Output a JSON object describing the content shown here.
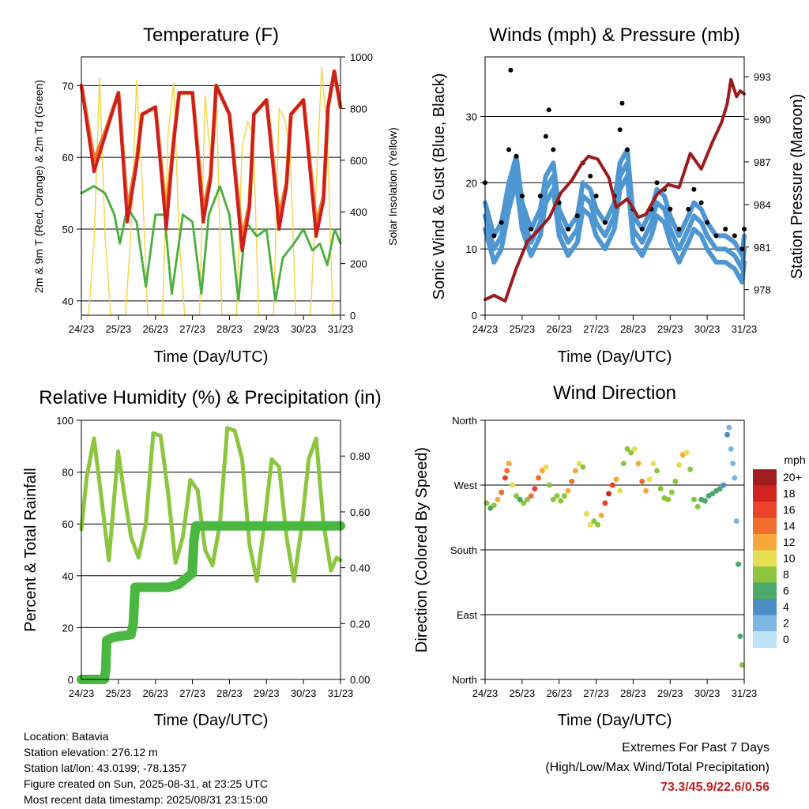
{
  "x_tick_labels": [
    "24/23",
    "25/23",
    "26/23",
    "27/23",
    "28/23",
    "29/23",
    "30/23",
    "31/23"
  ],
  "panels": {
    "temperature": {
      "title": "Temperature (F)",
      "xlabel": "Time (Day/UTC)",
      "ylabel_left": "2m & 9m T (Red, Orange) & 2m Td (Green)",
      "ylabel_right": "Solar Insolation (Yellow)"
    },
    "winds": {
      "title": "Winds (mph) & Pressure (mb)",
      "xlabel": "Time (Day/UTC)",
      "ylabel_left": "Sonic Wind & Gust (Blue, Black)",
      "ylabel_right": "Station Pressure (Maroon)"
    },
    "humidity": {
      "title": "Relative Humidity (%) & Precipitation (in)",
      "xlabel": "Time (Day/UTC)",
      "ylabel_left": "Percent & Total Rainfall"
    },
    "direction": {
      "title": "Wind Direction",
      "xlabel": "Time (Day/UTC)",
      "ylabel_left": "Direction (Colored By Speed)",
      "colorbar_title": "mph",
      "colorbar_labels": [
        "20+",
        "18",
        "16",
        "14",
        "12",
        "10",
        "8",
        "6",
        "4",
        "2",
        "0"
      ],
      "colorbar_colors": [
        "#a31c20",
        "#d2241f",
        "#e9432a",
        "#f26e2e",
        "#f9a73c",
        "#e6df52",
        "#8cc63f",
        "#4aa868",
        "#4a8ec5",
        "#7cb6e3",
        "#bfe3f7"
      ]
    }
  },
  "info": {
    "location": "Location: Batavia",
    "elevation": "Station elevation: 276.12 m",
    "latlon": "Station lat/lon: 43.0199; -78.1357",
    "created": "Figure created on Sun, 2025-08-31, at 23:25 UTC",
    "timestamp": "Most recent data timestamp: 2025/08/31 23:15:00"
  },
  "extremes": {
    "title": "Extremes For Past 7 Days",
    "subtitle": "(High/Low/Max Wind/Total Precipitation)",
    "values": "73.3/45.9/22.6/0.56"
  },
  "colors": {
    "temp_2m": "#cc1f1f",
    "temp_9m": "#f07a22",
    "dewpoint": "#4caf3f",
    "insolation": "#f5d442",
    "wind": "#4f97d3",
    "gust": "#000000",
    "pressure": "#9b1c1c",
    "rh": "#8cc63f",
    "precip": "#4ab840"
  },
  "chart_data": [
    {
      "type": "line",
      "name_key": "temperature",
      "x_range_days": [
        24.958,
        31.958
      ],
      "ylim_left": [
        38,
        74
      ],
      "yticks_left": [
        40,
        50,
        60,
        70
      ],
      "ylim_right": [
        0,
        1000
      ],
      "yticks_right": [
        0,
        200,
        400,
        600,
        800,
        1000
      ],
      "grid": true,
      "series": [
        {
          "key": "temp_2m",
          "x": [
            24.958,
            25.3,
            25.6,
            25.958,
            26.2,
            26.45,
            26.6,
            26.958,
            27.25,
            27.45,
            27.6,
            27.958,
            28.25,
            28.45,
            28.6,
            28.958,
            29.3,
            29.5,
            29.62,
            29.958,
            30.3,
            30.5,
            30.62,
            30.958,
            31.3,
            31.5,
            31.62,
            31.79,
            31.958
          ],
          "y": [
            70,
            58,
            63,
            69,
            51,
            59,
            66,
            67,
            50,
            62,
            69,
            69,
            51,
            57,
            70,
            66,
            47,
            53,
            66,
            68,
            50,
            56,
            66,
            68,
            49,
            54,
            67,
            72,
            67
          ]
        },
        {
          "key": "temp_9m",
          "x": [
            24.958,
            25.3,
            25.6,
            25.958,
            26.2,
            26.45,
            26.6,
            26.958,
            27.25,
            27.45,
            27.6,
            27.958,
            28.25,
            28.45,
            28.6,
            28.958,
            29.3,
            29.5,
            29.62,
            29.958,
            30.3,
            30.5,
            30.62,
            30.958,
            31.3,
            31.5,
            31.62,
            31.79,
            31.958
          ],
          "y": [
            70,
            59.5,
            63.5,
            69,
            52.5,
            59.5,
            66,
            67,
            51.5,
            62.5,
            69,
            69,
            52.5,
            57.5,
            70,
            66,
            48.5,
            53.5,
            66,
            68,
            51.5,
            56.5,
            66,
            68,
            50.5,
            54.5,
            67,
            72,
            67
          ]
        },
        {
          "key": "dewpoint",
          "x": [
            24.958,
            25.3,
            25.6,
            25.85,
            26.0,
            26.2,
            26.45,
            26.7,
            26.958,
            27.2,
            27.4,
            27.7,
            27.958,
            28.2,
            28.4,
            28.7,
            28.958,
            29.2,
            29.4,
            29.7,
            29.958,
            30.2,
            30.4,
            30.7,
            30.958,
            31.2,
            31.4,
            31.6,
            31.8,
            31.958
          ],
          "y": [
            55,
            56,
            55,
            52,
            48,
            53,
            51,
            42,
            52,
            52,
            41,
            52,
            51,
            41,
            52,
            56,
            52,
            40,
            51,
            49,
            50,
            40,
            46,
            48,
            50,
            47,
            48,
            45,
            50,
            48
          ]
        },
        {
          "key": "insolation",
          "axis": "right",
          "x": [
            24.958,
            25.15,
            25.3,
            25.45,
            25.6,
            25.75,
            25.958,
            26.15,
            26.3,
            26.45,
            26.6,
            26.75,
            26.958,
            27.15,
            27.3,
            27.45,
            27.6,
            27.75,
            27.958,
            28.15,
            28.3,
            28.45,
            28.6,
            28.75,
            28.958,
            29.15,
            29.3,
            29.45,
            29.6,
            29.75,
            29.958,
            30.15,
            30.3,
            30.45,
            30.6,
            30.75,
            30.958,
            31.15,
            31.3,
            31.45,
            31.6,
            31.75,
            31.958
          ],
          "y": [
            0,
            0,
            280,
            920,
            300,
            0,
            0,
            0,
            330,
            910,
            520,
            0,
            0,
            0,
            700,
            900,
            300,
            0,
            0,
            0,
            850,
            600,
            880,
            0,
            0,
            0,
            650,
            750,
            700,
            0,
            0,
            0,
            800,
            760,
            630,
            0,
            0,
            0,
            500,
            960,
            700,
            0,
            0
          ]
        }
      ]
    },
    {
      "type": "line",
      "name_key": "winds",
      "x_range_days": [
        24.958,
        31.958
      ],
      "ylim_left": [
        0,
        39
      ],
      "yticks_left": [
        0,
        10,
        20,
        30
      ],
      "ylim_right": [
        976.2,
        994.4
      ],
      "yticks_right": [
        978,
        981,
        984,
        987,
        990,
        993
      ],
      "grid": true,
      "series": [
        {
          "key": "wind",
          "style": "dense-band",
          "x": [
            24.958,
            25.2,
            25.4,
            25.6,
            25.8,
            25.958,
            26.2,
            26.45,
            26.6,
            26.8,
            26.958,
            27.2,
            27.45,
            27.6,
            27.8,
            27.958,
            28.2,
            28.45,
            28.6,
            28.8,
            28.958,
            29.2,
            29.45,
            29.6,
            29.8,
            29.958,
            30.2,
            30.45,
            30.6,
            30.8,
            30.958,
            31.2,
            31.45,
            31.7,
            31.9,
            31.958
          ],
          "y": [
            15,
            10,
            12,
            18,
            22,
            15,
            11,
            14,
            19,
            21,
            14,
            11,
            13,
            18,
            17,
            14,
            12,
            15,
            21,
            23,
            13,
            11,
            14,
            17,
            16,
            13,
            10,
            13,
            15,
            14,
            12,
            10,
            10,
            9,
            7,
            10
          ]
        },
        {
          "key": "gust",
          "style": "points",
          "x": [
            24.958,
            25.2,
            25.4,
            25.6,
            25.65,
            25.8,
            25.958,
            26.2,
            26.45,
            26.6,
            26.68,
            26.8,
            26.958,
            27.2,
            27.45,
            27.6,
            27.8,
            27.958,
            28.2,
            28.45,
            28.6,
            28.66,
            28.8,
            28.958,
            29.2,
            29.45,
            29.6,
            29.8,
            29.958,
            30.2,
            30.45,
            30.6,
            30.8,
            30.958,
            31.2,
            31.45,
            31.7,
            31.9,
            31.958
          ],
          "y": [
            20,
            12,
            14,
            25,
            37,
            24,
            18,
            13,
            18,
            27,
            31,
            25,
            17,
            13,
            15,
            23,
            21,
            18,
            14,
            18,
            28,
            32,
            25,
            16,
            13,
            16,
            20,
            19,
            16,
            13,
            16,
            19,
            17,
            14,
            12,
            13,
            12,
            10,
            13
          ]
        },
        {
          "key": "pressure",
          "axis": "right",
          "x": [
            24.958,
            25.2,
            25.5,
            25.8,
            26.1,
            26.4,
            26.7,
            27.0,
            27.3,
            27.55,
            27.75,
            28.0,
            28.3,
            28.5,
            28.8,
            29.1,
            29.3,
            29.6,
            29.9,
            30.2,
            30.5,
            30.8,
            31.1,
            31.35,
            31.5,
            31.6,
            31.75,
            31.85,
            31.958
          ],
          "y": [
            977.3,
            977.6,
            977.2,
            979.5,
            981.4,
            982.2,
            983.1,
            984.8,
            985.7,
            986.8,
            987.4,
            987.2,
            985.9,
            983.8,
            984.4,
            983.1,
            983.3,
            984.7,
            985.4,
            985.2,
            987.6,
            986.5,
            988.4,
            989.8,
            991.1,
            992.8,
            991.6,
            992.0,
            991.8
          ]
        }
      ]
    },
    {
      "type": "line",
      "name_key": "humidity",
      "x_range_days": [
        24.958,
        31.958
      ],
      "ylim_left": [
        0,
        100
      ],
      "yticks_left": [
        0,
        20,
        40,
        60,
        80,
        100
      ],
      "ylim_right": [
        0,
        0.928
      ],
      "yticks_right": [
        0.0,
        0.2,
        0.4,
        0.6,
        0.8
      ],
      "grid": true,
      "series": [
        {
          "key": "rh",
          "x": [
            24.958,
            25.1,
            25.3,
            25.5,
            25.7,
            25.95,
            26.1,
            26.3,
            26.5,
            26.7,
            26.9,
            27.1,
            27.3,
            27.5,
            27.7,
            27.9,
            28.1,
            28.3,
            28.5,
            28.7,
            28.9,
            29.1,
            29.3,
            29.5,
            29.7,
            29.9,
            30.1,
            30.3,
            30.5,
            30.7,
            30.9,
            31.1,
            31.3,
            31.5,
            31.7,
            31.85,
            31.958
          ],
          "y": [
            58,
            78,
            93,
            70,
            46,
            88,
            73,
            55,
            47,
            60,
            95,
            94,
            72,
            45,
            55,
            77,
            73,
            50,
            44,
            60,
            97,
            96,
            85,
            52,
            38,
            60,
            85,
            82,
            55,
            38,
            58,
            85,
            93,
            60,
            42,
            47,
            46
          ]
        },
        {
          "key": "precip",
          "axis": "right",
          "x": [
            24.958,
            25.58,
            25.62,
            25.64,
            25.8,
            26.0,
            26.3,
            26.36,
            26.41,
            26.9,
            27.3,
            27.58,
            27.95,
            28.0,
            28.05,
            28.2,
            28.6,
            31.958
          ],
          "y": [
            0.0,
            0.0,
            0.04,
            0.14,
            0.15,
            0.155,
            0.16,
            0.2,
            0.33,
            0.33,
            0.33,
            0.34,
            0.38,
            0.5,
            0.55,
            0.55,
            0.55,
            0.55
          ]
        }
      ]
    },
    {
      "type": "scatter",
      "name_key": "direction",
      "x_range_days": [
        24.958,
        31.958
      ],
      "ylim_left": [
        0,
        360
      ],
      "yticks_left_labels": [
        "North",
        "East",
        "South",
        "West",
        "North"
      ],
      "yticks_left_values": [
        0,
        90,
        180,
        270,
        360
      ],
      "grid": true,
      "points_x": [
        25.0,
        25.1,
        25.2,
        25.3,
        25.4,
        25.5,
        25.55,
        25.6,
        25.7,
        25.8,
        25.9,
        26.0,
        26.1,
        26.2,
        26.3,
        26.4,
        26.5,
        26.6,
        26.7,
        26.8,
        26.9,
        27.0,
        27.1,
        27.2,
        27.3,
        27.4,
        27.5,
        27.6,
        27.7,
        27.8,
        27.9,
        28.0,
        28.1,
        28.2,
        28.3,
        28.4,
        28.5,
        28.6,
        28.7,
        28.8,
        28.9,
        29.0,
        29.1,
        29.2,
        29.3,
        29.4,
        29.5,
        29.6,
        29.7,
        29.8,
        29.9,
        30.0,
        30.1,
        30.2,
        30.3,
        30.4,
        30.5,
        30.6,
        30.7,
        30.8,
        30.9,
        31.0,
        31.1,
        31.2,
        31.3,
        31.4,
        31.5,
        31.55,
        31.6,
        31.65,
        31.7,
        31.75,
        31.8,
        31.85,
        31.9
      ],
      "points_y": [
        245,
        238,
        242,
        250,
        260,
        280,
        290,
        300,
        270,
        255,
        250,
        245,
        250,
        255,
        265,
        280,
        290,
        295,
        270,
        250,
        255,
        248,
        255,
        262,
        275,
        290,
        300,
        295,
        230,
        215,
        220,
        215,
        228,
        245,
        258,
        270,
        278,
        262,
        300,
        320,
        315,
        320,
        300,
        275,
        262,
        278,
        300,
        290,
        265,
        252,
        250,
        260,
        275,
        298,
        312,
        315,
        292,
        250,
        240,
        250,
        248,
        255,
        258,
        262,
        265,
        270,
        340,
        350,
        320,
        300,
        280,
        220,
        160,
        60,
        20
      ],
      "points_speed": [
        8,
        7,
        9,
        12,
        15,
        16,
        14,
        12,
        10,
        8,
        7,
        8,
        9,
        14,
        17,
        14,
        12,
        11,
        9,
        9,
        8,
        8,
        9,
        12,
        14,
        12,
        11,
        9,
        10,
        11,
        9,
        9,
        13,
        17,
        19,
        16,
        13,
        10,
        9,
        8,
        8,
        10,
        12,
        14,
        13,
        11,
        10,
        9,
        9,
        8,
        8,
        8,
        9,
        11,
        12,
        11,
        9,
        8,
        8,
        7,
        7,
        6,
        6,
        6,
        6,
        4,
        4,
        3,
        2,
        3,
        3,
        2,
        6,
        7,
        8
      ]
    }
  ]
}
